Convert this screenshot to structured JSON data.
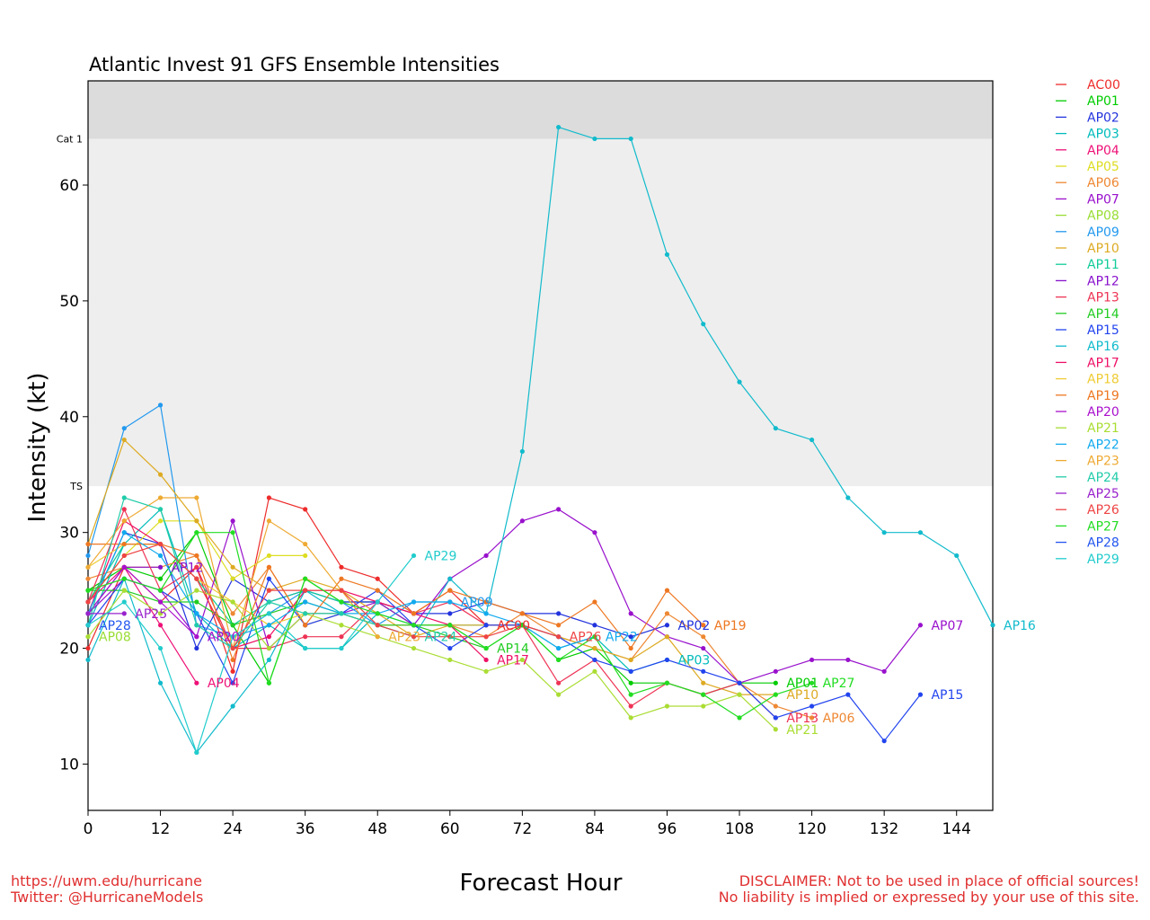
{
  "chart_data": {
    "type": "line",
    "title": "Atlantic Invest 91 GFS Ensemble Intensities",
    "xlabel": "Forecast Hour",
    "ylabel": "Intensity (kt)",
    "xlim": [
      0,
      150
    ],
    "ylim": [
      6,
      69
    ],
    "xticks": [
      0,
      12,
      24,
      36,
      48,
      60,
      72,
      84,
      96,
      108,
      120,
      132,
      144
    ],
    "yticks": [
      10,
      20,
      30,
      40,
      50,
      60
    ],
    "bands": [
      {
        "label": "TS",
        "from": 34,
        "to": 64,
        "color": "#eeeeee"
      },
      {
        "label": "Cat 1",
        "from": 64,
        "to": 69,
        "color": "#dcdcdc"
      }
    ],
    "grid": false,
    "legend_position": "right",
    "series": [
      {
        "name": "AC00",
        "color": "#ee2c2c",
        "end_label": "AC00",
        "x": [
          0,
          6,
          12,
          18,
          24,
          30,
          36,
          42,
          48,
          54,
          60,
          66
        ],
        "y": [
          20,
          27,
          24,
          27,
          18,
          33,
          32,
          27,
          26,
          23,
          25,
          22
        ]
      },
      {
        "name": "AP01",
        "color": "#00cc00",
        "end_label": "AP01",
        "x": [
          0,
          6,
          12,
          18,
          24,
          30,
          36,
          42,
          48,
          54,
          60,
          66,
          72,
          78,
          84,
          90,
          96,
          102,
          108,
          114
        ],
        "y": [
          25,
          27,
          26,
          30,
          22,
          17,
          26,
          24,
          24,
          22,
          22,
          20,
          22,
          19,
          20,
          17,
          17,
          16,
          17,
          17
        ]
      },
      {
        "name": "AP02",
        "color": "#2233dd",
        "end_label": "AP02",
        "x": [
          0,
          6,
          12,
          18,
          24,
          30,
          36,
          42,
          48,
          54,
          60,
          66,
          72,
          78,
          84,
          90,
          96
        ],
        "y": [
          23,
          30,
          29,
          20,
          26,
          24,
          25,
          24,
          24,
          23,
          23,
          24,
          23,
          23,
          22,
          21,
          22
        ]
      },
      {
        "name": "AP03",
        "color": "#00bbbb",
        "end_label": "AP03",
        "x": [
          0,
          6,
          12,
          18,
          24,
          30,
          36,
          42,
          48,
          54,
          60,
          66,
          72,
          78,
          84,
          90,
          96
        ],
        "y": [
          22,
          29,
          32,
          23,
          20,
          22,
          20,
          20,
          23,
          22,
          22,
          22,
          22,
          20,
          21,
          18,
          19
        ]
      },
      {
        "name": "AP04",
        "color": "#ee1177",
        "end_label": "AP04",
        "x": [
          0,
          6,
          12,
          18
        ],
        "y": [
          24,
          27,
          22,
          17
        ]
      },
      {
        "name": "AP05",
        "color": "#dddd22",
        "end_label": "",
        "x": [
          0,
          6,
          12,
          18,
          24,
          30,
          36
        ],
        "y": [
          24,
          28,
          31,
          31,
          26,
          28,
          28
        ]
      },
      {
        "name": "AP06",
        "color": "#ee8833",
        "end_label": "AP06",
        "x": [
          0,
          6,
          12,
          18,
          24,
          30,
          36,
          42,
          48,
          54,
          60,
          66,
          72,
          78,
          84,
          90,
          96,
          102,
          108,
          114,
          120
        ],
        "y": [
          26,
          27,
          27,
          28,
          23,
          27,
          22,
          23,
          22,
          22,
          22,
          21,
          23,
          21,
          20,
          19,
          23,
          21,
          17,
          15,
          14
        ]
      },
      {
        "name": "AP07",
        "color": "#9911cc",
        "end_label": "AP07",
        "x": [
          0,
          6,
          12,
          18,
          24,
          30,
          36,
          42,
          48,
          54,
          60,
          66,
          72,
          78,
          84,
          90,
          96,
          102,
          108,
          114,
          120,
          126,
          132,
          138
        ],
        "y": [
          23,
          26,
          25,
          21,
          31,
          20,
          23,
          23,
          24,
          22,
          26,
          28,
          31,
          32,
          30,
          23,
          21,
          20,
          17,
          18,
          19,
          19,
          18,
          22
        ]
      },
      {
        "name": "AP08",
        "color": "#99dd33",
        "end_label": "AP08",
        "x": [
          0
        ],
        "y": [
          21
        ]
      },
      {
        "name": "AP09",
        "color": "#2299ee",
        "end_label": "AP09",
        "x": [
          0,
          6,
          12,
          18,
          24,
          30,
          36,
          42,
          48,
          54,
          60
        ],
        "y": [
          28,
          39,
          41,
          22,
          21,
          23,
          25,
          24,
          22,
          24,
          24
        ]
      },
      {
        "name": "AP10",
        "color": "#ddaa22",
        "end_label": "AP10",
        "x": [
          0,
          6,
          12,
          18,
          24,
          30,
          36,
          42,
          48,
          54,
          60,
          66,
          72,
          78,
          84,
          90,
          96,
          102,
          108,
          114
        ],
        "y": [
          29,
          38,
          35,
          31,
          27,
          25,
          26,
          25,
          23,
          21,
          22,
          22,
          22,
          21,
          20,
          19,
          21,
          17,
          16,
          16
        ]
      },
      {
        "name": "AP11",
        "color": "#11cc99",
        "end_label": "",
        "x": [
          0,
          6,
          12,
          18,
          24,
          30,
          36,
          42
        ],
        "y": [
          24,
          29,
          29,
          26,
          22,
          24,
          25,
          24
        ]
      },
      {
        "name": "AP12",
        "color": "#8811cc",
        "end_label": "AP12",
        "x": [
          0,
          6,
          12
        ],
        "y": [
          23,
          27,
          27
        ]
      },
      {
        "name": "AP13",
        "color": "#ee3355",
        "end_label": "AP13",
        "x": [
          0,
          6,
          12,
          18,
          24,
          30,
          36,
          42,
          48,
          54,
          60,
          66,
          72,
          78,
          84,
          90,
          96,
          102,
          108,
          114
        ],
        "y": [
          24,
          32,
          25,
          27,
          20,
          20,
          21,
          21,
          24,
          23,
          24,
          22,
          22,
          17,
          19,
          15,
          17,
          16,
          17,
          14
        ]
      },
      {
        "name": "AP14",
        "color": "#22cc22",
        "end_label": "AP14",
        "x": [
          0,
          6,
          12,
          18,
          24,
          30,
          36,
          42,
          48,
          54,
          60,
          66
        ],
        "y": [
          25,
          25,
          24,
          24,
          22,
          23,
          24,
          23,
          22,
          22,
          21,
          20
        ]
      },
      {
        "name": "AP15",
        "color": "#2244ee",
        "end_label": "AP15",
        "x": [
          0,
          6,
          12,
          18,
          24,
          30,
          36,
          42,
          48,
          54,
          60,
          66,
          72,
          78,
          84,
          90,
          96,
          102,
          108,
          114,
          120,
          126,
          132,
          138
        ],
        "y": [
          22,
          26,
          25,
          23,
          17,
          26,
          22,
          23,
          25,
          22,
          20,
          22,
          22,
          21,
          19,
          18,
          19,
          18,
          17,
          14,
          15,
          16,
          12,
          16
        ]
      },
      {
        "name": "AP16",
        "color": "#11bbcc",
        "end_label": "AP16",
        "x": [
          0,
          6,
          12,
          18,
          24,
          30,
          36,
          42,
          48,
          54,
          60,
          66,
          72,
          78,
          84,
          90,
          96,
          102,
          108,
          114,
          120,
          126,
          132,
          138,
          144,
          150
        ],
        "y": [
          19,
          26,
          17,
          11,
          15,
          19,
          25,
          23,
          22,
          21,
          26,
          23,
          37,
          65,
          64,
          64,
          54,
          48,
          43,
          39,
          38,
          33,
          30,
          30,
          28,
          22
        ]
      },
      {
        "name": "AP17",
        "color": "#ee1166",
        "end_label": "AP17",
        "x": [
          0,
          6,
          12,
          18,
          24,
          30,
          36,
          42,
          48,
          54,
          60,
          66
        ],
        "y": [
          23,
          31,
          29,
          26,
          20,
          21,
          25,
          25,
          24,
          23,
          22,
          19
        ]
      },
      {
        "name": "AP18",
        "color": "#eecc33",
        "end_label": "",
        "x": [
          0,
          6,
          12,
          18,
          24,
          30,
          36,
          42,
          48
        ],
        "y": [
          27,
          29,
          29,
          26,
          24,
          22,
          23,
          23,
          22
        ]
      },
      {
        "name": "AP19",
        "color": "#ee7722",
        "end_label": "AP19",
        "x": [
          0,
          6,
          12,
          18,
          24,
          30,
          36,
          42,
          48,
          54,
          60,
          66,
          72,
          78,
          84,
          90,
          96,
          102
        ],
        "y": [
          29,
          29,
          29,
          28,
          19,
          27,
          22,
          26,
          25,
          23,
          25,
          24,
          23,
          22,
          24,
          20,
          25,
          22
        ]
      },
      {
        "name": "AP20",
        "color": "#aa11cc",
        "end_label": "AP20",
        "x": [
          0,
          6,
          12,
          18
        ],
        "y": [
          23,
          27,
          24,
          21
        ]
      },
      {
        "name": "AP21",
        "color": "#aadd33",
        "end_label": "AP21",
        "x": [
          0,
          6,
          12,
          18,
          24,
          30,
          36,
          42,
          48,
          54,
          60,
          66,
          72,
          78,
          84,
          90,
          96,
          102,
          108,
          114
        ],
        "y": [
          21,
          25,
          23,
          25,
          24,
          20,
          23,
          22,
          21,
          20,
          19,
          18,
          19,
          16,
          18,
          14,
          15,
          15,
          16,
          13
        ]
      },
      {
        "name": "AP22",
        "color": "#11aaee",
        "end_label": "AP22",
        "x": [
          0,
          6,
          12,
          18,
          24,
          30,
          36,
          42,
          48,
          54,
          60,
          66,
          72,
          78,
          84
        ],
        "y": [
          23,
          30,
          28,
          23,
          21,
          22,
          24,
          23,
          23,
          24,
          24,
          23,
          22,
          20,
          21
        ]
      },
      {
        "name": "AP23",
        "color": "#eeaa33",
        "end_label": "AP23",
        "x": [
          0,
          6,
          12,
          18,
          24,
          30,
          36,
          42,
          48
        ],
        "y": [
          27,
          31,
          33,
          33,
          20,
          31,
          29,
          25,
          21
        ]
      },
      {
        "name": "AP24",
        "color": "#22ccaa",
        "end_label": "AP24",
        "x": [
          0,
          6,
          12,
          18,
          24,
          30,
          36,
          42,
          48,
          54
        ],
        "y": [
          22,
          33,
          32,
          22,
          20,
          24,
          23,
          23,
          22,
          21
        ]
      },
      {
        "name": "AP25",
        "color": "#9922cc",
        "end_label": "AP25",
        "x": [
          0,
          6
        ],
        "y": [
          23,
          23
        ]
      },
      {
        "name": "AP26",
        "color": "#ee4444",
        "end_label": "AP26",
        "x": [
          0,
          6,
          12,
          18,
          24,
          30,
          36,
          42,
          48,
          54,
          60,
          66,
          72,
          78
        ],
        "y": [
          24,
          28,
          29,
          26,
          20,
          25,
          25,
          25,
          22,
          21,
          21,
          21,
          22,
          21
        ]
      },
      {
        "name": "AP27",
        "color": "#22dd22",
        "end_label": "AP27",
        "x": [
          0,
          6,
          12,
          18,
          24,
          30,
          36,
          42,
          48,
          54,
          60,
          66,
          72,
          78,
          84,
          90,
          96,
          102,
          108,
          114,
          120
        ],
        "y": [
          25,
          26,
          25,
          30,
          30,
          17,
          26,
          24,
          23,
          22,
          22,
          20,
          22,
          19,
          21,
          16,
          17,
          16,
          14,
          16,
          17
        ]
      },
      {
        "name": "AP28",
        "color": "#2255ee",
        "end_label": "AP28",
        "x": [
          0
        ],
        "y": [
          22
        ]
      },
      {
        "name": "AP29",
        "color": "#22cccc",
        "end_label": "AP29",
        "x": [
          0,
          6,
          12,
          18,
          24,
          30,
          36,
          42,
          48,
          54
        ],
        "y": [
          22,
          24,
          20,
          11,
          21,
          23,
          20,
          20,
          24,
          28
        ]
      }
    ]
  },
  "footer": {
    "url": "https://uwm.edu/hurricane",
    "twitter": "Twitter: @HurricaneModels",
    "disclaimer_line1": "DISCLAIMER: Not to be used in place of official sources!",
    "disclaimer_line2": "No liability is implied or expressed by your use of this site."
  }
}
